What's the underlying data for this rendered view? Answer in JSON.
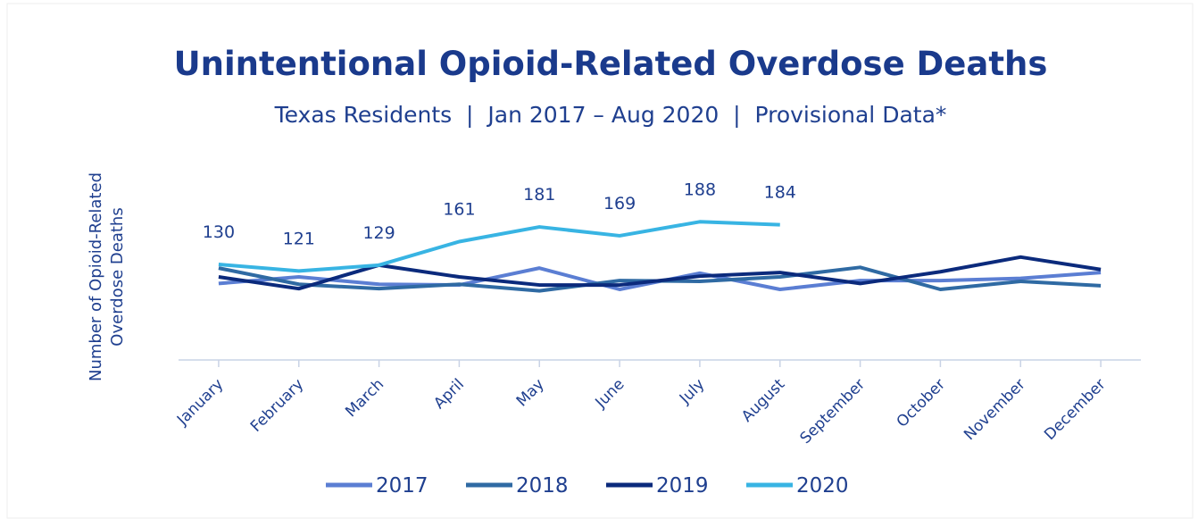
{
  "chart_data": {
    "type": "line",
    "title": "Unintentional Opioid-Related Overdose Deaths",
    "subtitle": "Texas Residents  |  Jan 2017 – Aug 2020  |  Provisional Data*",
    "y_label": [
      "Number of Opioid-Related",
      "Overdose Deaths"
    ],
    "categories": [
      "January",
      "February",
      "March",
      "April",
      "May",
      "June",
      "July",
      "August",
      "September",
      "October",
      "November",
      "December"
    ],
    "series": [
      {
        "name": "2017",
        "color": "#5b7ed3",
        "values": [
          104,
          113,
          103,
          102,
          125,
          96,
          118,
          96,
          108,
          108,
          111,
          119
        ]
      },
      {
        "name": "2018",
        "color": "#2f6aa3",
        "values": [
          125,
          103,
          97,
          103,
          94,
          108,
          107,
          113,
          126,
          96,
          107,
          101
        ]
      },
      {
        "name": "2019",
        "color": "#0b2a7c",
        "values": [
          113,
          97,
          129,
          113,
          102,
          102,
          114,
          119,
          104,
          120,
          140,
          123
        ]
      },
      {
        "name": "2020",
        "color": "#38b4e3",
        "values": [
          130,
          121,
          129,
          161,
          181,
          169,
          188,
          184,
          null,
          null,
          null,
          null
        ],
        "data_labels": true
      }
    ],
    "ylim": [
      0,
      240
    ],
    "grid": false
  }
}
